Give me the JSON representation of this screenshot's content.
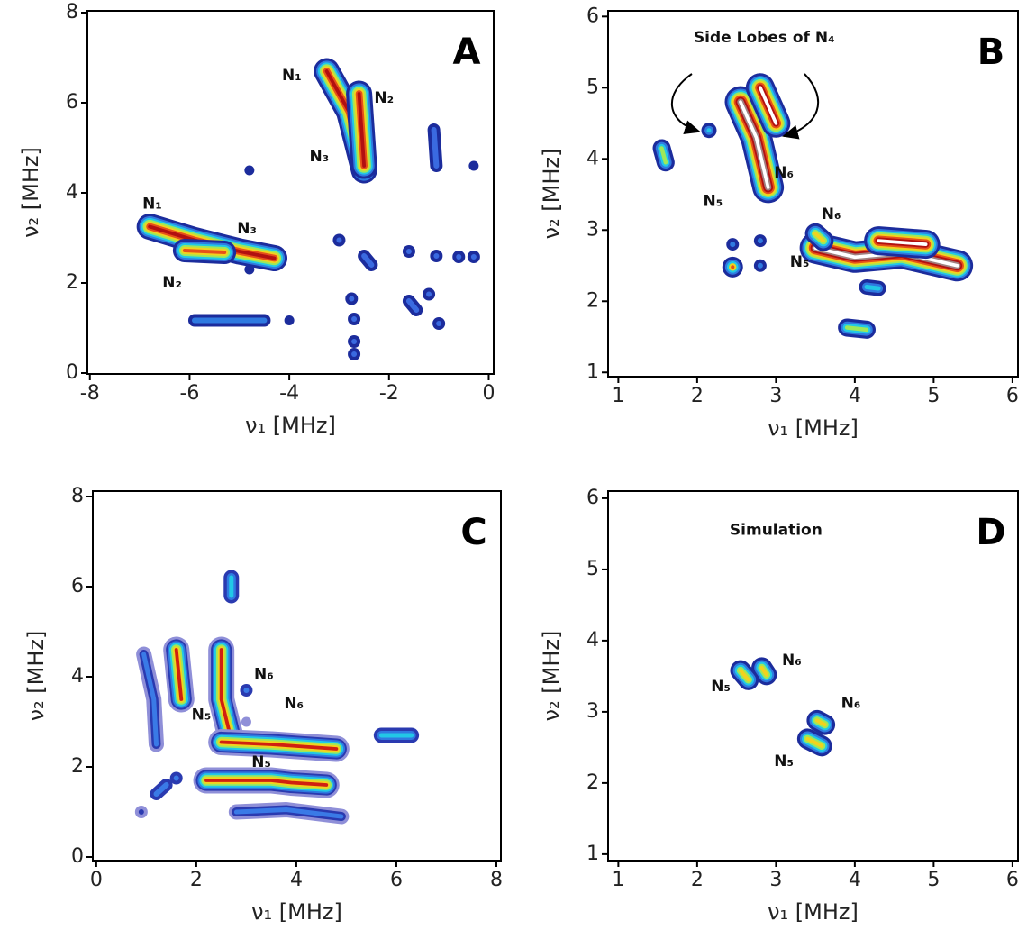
{
  "chart_data": [
    {
      "type": "contour",
      "label": "A",
      "xlabel": "ν₁ [MHz]",
      "ylabel": "ν₂ [MHz]",
      "xlim": [
        -8.05,
        0.1
      ],
      "ylim": [
        -0.02,
        8.04
      ],
      "xticks": [
        -8,
        -6,
        -4,
        -2,
        0
      ],
      "yticks": [
        0,
        2,
        4,
        6,
        8
      ],
      "features": [
        {
          "x": [
            -6.8,
            -5.9,
            -5,
            -4.3
          ],
          "y": [
            3.25,
            2.95,
            2.7,
            2.55
          ],
          "colors": [
            "#1c2c9c",
            "#2f7ae0",
            "#22c8e6",
            "#9ee85a",
            "#f2d21e",
            "#e6501a",
            "#b21010"
          ]
        },
        {
          "x": [
            -6.1,
            -5.3
          ],
          "y": [
            2.72,
            2.68
          ],
          "colors": [
            "#1c2c9c",
            "#2f7ae0",
            "#22c8e6",
            "#9ee85a",
            "#f2d21e",
            "#e6501a"
          ]
        },
        {
          "x": [
            -3.25,
            -2.8,
            -2.5
          ],
          "y": [
            6.7,
            5.8,
            4.5
          ],
          "colors": [
            "#1c2c9c",
            "#2f7ae0",
            "#22c8e6",
            "#9ee85a",
            "#f2d21e",
            "#e6501a",
            "#b21010"
          ]
        },
        {
          "x": [
            -2.6,
            -2.5
          ],
          "y": [
            6.2,
            4.6
          ],
          "colors": [
            "#1c2c9c",
            "#2f7ae0",
            "#22c8e6",
            "#9ee85a",
            "#f2d21e",
            "#e6501a",
            "#b21010"
          ]
        },
        {
          "x": [
            -5.9,
            -4.5
          ],
          "y": [
            1.17,
            1.17
          ],
          "colors": [
            "#1c2c9c",
            "#2f7ae0"
          ]
        },
        {
          "x": [
            -1.1,
            -1.05
          ],
          "y": [
            5.4,
            4.6
          ],
          "colors": [
            "#1c2c9c",
            "#3a6ae0"
          ]
        },
        {
          "x": [
            -3
          ],
          "y": [
            2.95
          ],
          "colors": [
            "#1c2c9c",
            "#3a6ae0"
          ]
        },
        {
          "x": [
            -2.5,
            -2.35
          ],
          "y": [
            2.6,
            2.4
          ],
          "colors": [
            "#1c2c9c",
            "#3a6ae0"
          ]
        },
        {
          "x": [
            -1.6
          ],
          "y": [
            2.7
          ],
          "colors": [
            "#1c2c9c",
            "#3a6ae0"
          ]
        },
        {
          "x": [
            -1.05
          ],
          "y": [
            2.6
          ],
          "colors": [
            "#1c2c9c",
            "#3a6ae0"
          ]
        },
        {
          "x": [
            -0.6
          ],
          "y": [
            2.58
          ],
          "colors": [
            "#1c2c9c",
            "#3a6ae0"
          ]
        },
        {
          "x": [
            -0.3
          ],
          "y": [
            2.58
          ],
          "colors": [
            "#1c2c9c",
            "#3a6ae0"
          ]
        },
        {
          "x": [
            -2.75
          ],
          "y": [
            1.65
          ],
          "colors": [
            "#1c2c9c",
            "#3a6ae0"
          ]
        },
        {
          "x": [
            -2.7
          ],
          "y": [
            1.2
          ],
          "colors": [
            "#1c2c9c",
            "#3a6ae0"
          ]
        },
        {
          "x": [
            -1.6,
            -1.45
          ],
          "y": [
            1.6,
            1.4
          ],
          "colors": [
            "#1c2c9c",
            "#3a6ae0"
          ]
        },
        {
          "x": [
            -1.2
          ],
          "y": [
            1.75
          ],
          "colors": [
            "#1c2c9c",
            "#3a6ae0"
          ]
        },
        {
          "x": [
            -1
          ],
          "y": [
            1.1
          ],
          "colors": [
            "#1c2c9c",
            "#3a6ae0"
          ]
        },
        {
          "x": [
            -2.7
          ],
          "y": [
            0.7
          ],
          "colors": [
            "#1c2c9c",
            "#3a6ae0"
          ]
        },
        {
          "x": [
            -2.7
          ],
          "y": [
            0.42
          ],
          "colors": [
            "#1c2c9c",
            "#3a6ae0"
          ]
        },
        {
          "x": [
            -4.8
          ],
          "y": [
            2.3
          ],
          "colors": [
            "#1c2c9c"
          ]
        },
        {
          "x": [
            -4.0
          ],
          "y": [
            1.17
          ],
          "colors": [
            "#1c2c9c"
          ]
        },
        {
          "x": [
            -0.3
          ],
          "y": [
            4.6
          ],
          "colors": [
            "#1c2c9c"
          ]
        },
        {
          "x": [
            -4.8
          ],
          "y": [
            4.5
          ],
          "colors": [
            "#1c2c9c"
          ]
        }
      ],
      "annotations": [
        {
          "text": "N₁",
          "x": -6.75,
          "y": 3.75
        },
        {
          "text": "N₃",
          "x": -4.85,
          "y": 3.2
        },
        {
          "text": "N₂",
          "x": -6.35,
          "y": 2.0
        },
        {
          "text": "N₁",
          "x": -3.95,
          "y": 6.6
        },
        {
          "text": "N₂",
          "x": -2.1,
          "y": 6.1
        },
        {
          "text": "N₃",
          "x": -3.4,
          "y": 4.8
        }
      ]
    },
    {
      "type": "contour",
      "label": "B",
      "xlabel": "ν₁ [MHz]",
      "ylabel": "ν₂ [MHz]",
      "xlim": [
        0.87,
        6.07
      ],
      "ylim": [
        0.94,
        6.08
      ],
      "xticks": [
        1,
        2,
        3,
        4,
        5,
        6
      ],
      "yticks": [
        1,
        2,
        3,
        4,
        5,
        6
      ],
      "features": [
        {
          "x": [
            3.5,
            4,
            4.6,
            5.3
          ],
          "y": [
            2.75,
            2.62,
            2.68,
            2.5
          ],
          "colors": [
            "#1c2c9c",
            "#2f7ae0",
            "#22c8e6",
            "#9ee85a",
            "#f2d21e",
            "#e6501a",
            "#b21010",
            "#a08080",
            "#ffffff"
          ]
        },
        {
          "x": [
            4.3,
            4.9
          ],
          "y": [
            2.85,
            2.8
          ],
          "colors": [
            "#1c2c9c",
            "#2f7ae0",
            "#22c8e6",
            "#9ee85a",
            "#f2d21e",
            "#e6501a",
            "#b21010",
            "#ffffff"
          ]
        },
        {
          "x": [
            2.55,
            2.75,
            2.9
          ],
          "y": [
            4.8,
            4.3,
            3.6
          ],
          "colors": [
            "#1c2c9c",
            "#2f7ae0",
            "#22c8e6",
            "#9ee85a",
            "#f2d21e",
            "#e6501a",
            "#b21010",
            "#a08080",
            "#ffffff"
          ]
        },
        {
          "x": [
            2.8,
            3.0
          ],
          "y": [
            5.0,
            4.5
          ],
          "colors": [
            "#1c2c9c",
            "#2f7ae0",
            "#22c8e6",
            "#9ee85a",
            "#f2d21e",
            "#e6501a",
            "#b21010",
            "#ffffff"
          ]
        },
        {
          "x": [
            1.55,
            1.6
          ],
          "y": [
            4.15,
            3.95
          ],
          "colors": [
            "#1c2c9c",
            "#2f7ae0",
            "#22c8e6",
            "#9ee85a"
          ]
        },
        {
          "x": [
            2.15
          ],
          "y": [
            4.4
          ],
          "colors": [
            "#1c2c9c",
            "#2f7ae0",
            "#22c8e6"
          ]
        },
        {
          "x": [
            2.45
          ],
          "y": [
            2.8
          ],
          "colors": [
            "#1c2c9c",
            "#2f7ae0"
          ]
        },
        {
          "x": [
            2.8
          ],
          "y": [
            2.85
          ],
          "colors": [
            "#1c2c9c",
            "#2f7ae0"
          ]
        },
        {
          "x": [
            2.45
          ],
          "y": [
            2.48
          ],
          "colors": [
            "#1c2c9c",
            "#2f7ae0",
            "#22c8e6",
            "#f2d21e",
            "#e6501a"
          ]
        },
        {
          "x": [
            2.8
          ],
          "y": [
            2.5
          ],
          "colors": [
            "#1c2c9c",
            "#2f7ae0"
          ]
        },
        {
          "x": [
            4.15,
            4.3
          ],
          "y": [
            2.2,
            2.18
          ],
          "colors": [
            "#1c2c9c",
            "#2f7ae0",
            "#22c8e6"
          ]
        },
        {
          "x": [
            3.9,
            4.15
          ],
          "y": [
            1.63,
            1.6
          ],
          "colors": [
            "#1c2c9c",
            "#2f7ae0",
            "#22c8e6",
            "#9ee85a"
          ]
        },
        {
          "x": [
            3.5,
            3.6
          ],
          "y": [
            2.95,
            2.85
          ],
          "colors": [
            "#1c2c9c",
            "#2f7ae0",
            "#22c8e6",
            "#9ee85a",
            "#f2d21e"
          ]
        }
      ],
      "annotations": [
        {
          "text": "Side Lobes of N₄",
          "x": 2.85,
          "y": 5.7
        },
        {
          "text": "N₆",
          "x": 3.1,
          "y": 3.8
        },
        {
          "text": "N₅",
          "x": 2.2,
          "y": 3.4
        },
        {
          "text": "N₆",
          "x": 3.7,
          "y": 3.22
        },
        {
          "text": "N₅",
          "x": 3.3,
          "y": 2.55
        }
      ]
    },
    {
      "type": "contour",
      "label": "C",
      "xlabel": "ν₁ [MHz]",
      "ylabel": "ν₂ [MHz]",
      "xlim": [
        -0.07,
        8.09
      ],
      "ylim": [
        -0.08,
        8.12
      ],
      "xticks": [
        0,
        2,
        4,
        6,
        8
      ],
      "yticks": [
        0,
        2,
        4,
        6,
        8
      ],
      "features": [
        {
          "x": [
            0.95,
            1.15,
            1.2
          ],
          "y": [
            4.5,
            3.5,
            2.5
          ],
          "colors": [
            "#8f8fd8",
            "#2a3ab0",
            "#3a7ae6"
          ]
        },
        {
          "x": [
            1.6,
            1.7
          ],
          "y": [
            4.6,
            3.5
          ],
          "colors": [
            "#8f8fd8",
            "#2a3ab0",
            "#2f7ae0",
            "#22c8e6",
            "#9ee85a",
            "#f2d21e",
            "#d02010"
          ]
        },
        {
          "x": [
            2.5,
            2.5,
            2.7
          ],
          "y": [
            4.6,
            3.5,
            2.6
          ],
          "colors": [
            "#8f8fd8",
            "#2a3ab0",
            "#2f7ae0",
            "#22c8e6",
            "#9ee85a",
            "#f2d21e",
            "#d02010"
          ]
        },
        {
          "x": [
            2.5,
            3.5,
            4.8
          ],
          "y": [
            2.55,
            2.5,
            2.4
          ],
          "colors": [
            "#8f8fd8",
            "#2a3ab0",
            "#2f7ae0",
            "#22c8e6",
            "#9ee85a",
            "#f2d21e",
            "#d02010"
          ]
        },
        {
          "x": [
            2.2,
            3.5,
            3.9,
            4.6
          ],
          "y": [
            1.7,
            1.7,
            1.65,
            1.6
          ],
          "colors": [
            "#8f8fd8",
            "#2a3ab0",
            "#2f7ae0",
            "#22c8e6",
            "#9ee85a",
            "#f2d21e",
            "#d02010"
          ]
        },
        {
          "x": [
            2.8,
            3.8,
            4.9
          ],
          "y": [
            1.0,
            1.05,
            0.9
          ],
          "colors": [
            "#8f8fd8",
            "#2a3ab0",
            "#3a7ae6"
          ]
        },
        {
          "x": [
            5.7,
            6.3
          ],
          "y": [
            2.7,
            2.7
          ],
          "colors": [
            "#2a3ab0",
            "#2f7ae0",
            "#22c8e6"
          ]
        },
        {
          "x": [
            2.7,
            2.7
          ],
          "y": [
            6.2,
            5.8
          ],
          "colors": [
            "#2a3ab0",
            "#2f7ae0",
            "#22c8e6"
          ]
        },
        {
          "x": [
            0.9
          ],
          "y": [
            1.0
          ],
          "colors": [
            "#8f8fd8",
            "#2a3ab0"
          ]
        },
        {
          "x": [
            1.2,
            1.4
          ],
          "y": [
            1.4,
            1.6
          ],
          "colors": [
            "#2a3ab0",
            "#3a7ae6"
          ]
        },
        {
          "x": [
            1.6
          ],
          "y": [
            1.75
          ],
          "colors": [
            "#2a3ab0",
            "#3a7ae6"
          ]
        },
        {
          "x": [
            3.0
          ],
          "y": [
            3.7
          ],
          "colors": [
            "#2a3ab0",
            "#3a7ae6"
          ]
        },
        {
          "x": [
            3.0
          ],
          "y": [
            3.0
          ],
          "colors": [
            "#8f8fd8"
          ]
        }
      ],
      "annotations": [
        {
          "text": "N₆",
          "x": 3.35,
          "y": 4.05
        },
        {
          "text": "N₆",
          "x": 3.95,
          "y": 3.4
        },
        {
          "text": "N₅",
          "x": 2.1,
          "y": 3.15
        },
        {
          "text": "N₅",
          "x": 3.3,
          "y": 2.1
        }
      ]
    },
    {
      "type": "contour",
      "label": "D",
      "xlabel": "ν₁ [MHz]",
      "ylabel": "ν₂ [MHz]",
      "xlim": [
        0.87,
        6.07
      ],
      "ylim": [
        0.91,
        6.1
      ],
      "xticks": [
        1,
        2,
        3,
        4,
        5,
        6
      ],
      "yticks": [
        1,
        2,
        3,
        4,
        5,
        6
      ],
      "features": [
        {
          "x": [
            2.55,
            2.65
          ],
          "y": [
            3.58,
            3.45
          ],
          "colors": [
            "#1c2c9c",
            "#2f7ae0",
            "#22c8e6",
            "#9ee85a",
            "#f2d21e"
          ]
        },
        {
          "x": [
            2.82,
            2.88
          ],
          "y": [
            3.62,
            3.52
          ],
          "colors": [
            "#1c2c9c",
            "#2f7ae0",
            "#22c8e6",
            "#9ee85a",
            "#f2d21e"
          ]
        },
        {
          "x": [
            3.52,
            3.62
          ],
          "y": [
            2.88,
            2.82
          ],
          "colors": [
            "#1c2c9c",
            "#2f7ae0",
            "#22c8e6",
            "#9ee85a",
            "#f2d21e"
          ]
        },
        {
          "x": [
            3.4,
            3.58
          ],
          "y": [
            2.62,
            2.52
          ],
          "colors": [
            "#1c2c9c",
            "#2f7ae0",
            "#22c8e6",
            "#9ee85a",
            "#f2d21e"
          ]
        }
      ],
      "annotations": [
        {
          "text": "Simulation",
          "x": 3.0,
          "y": 5.55
        },
        {
          "text": "N₆",
          "x": 3.2,
          "y": 3.72
        },
        {
          "text": "N₅",
          "x": 2.3,
          "y": 3.35
        },
        {
          "text": "N₆",
          "x": 3.95,
          "y": 3.12
        },
        {
          "text": "N₅",
          "x": 3.1,
          "y": 2.3
        }
      ]
    }
  ]
}
